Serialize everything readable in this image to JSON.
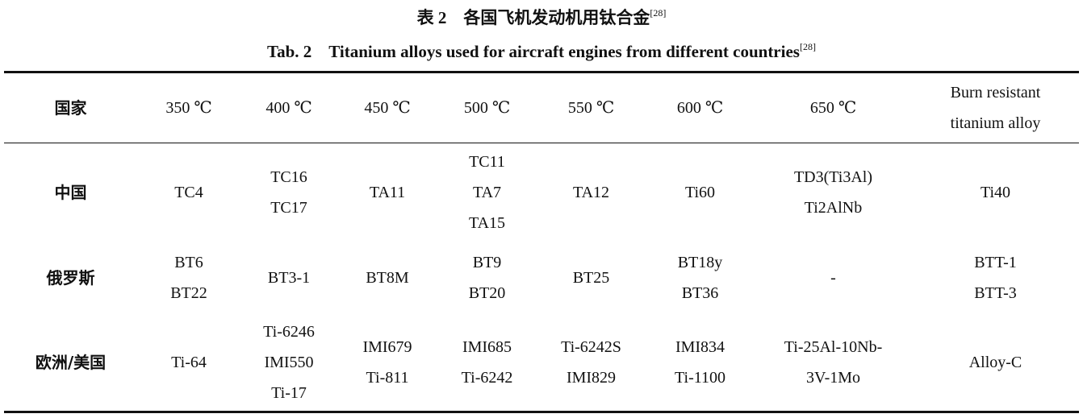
{
  "title_zh": {
    "text": "表 2　各国飞机发动机用钛合金",
    "ref": "[28]"
  },
  "title_en": {
    "text": "Tab. 2　Titanium alloys used for aircraft engines from different countries",
    "ref": "[28]"
  },
  "table": {
    "header": [
      "国家",
      "350 ℃",
      "400 ℃",
      "450 ℃",
      "500 ℃",
      "550 ℃",
      "600 ℃",
      "650 ℃",
      "Burn resistant titanium alloy"
    ],
    "rows": [
      {
        "country": "中国",
        "cells": [
          [
            "TC4"
          ],
          [
            "TC16",
            "TC17"
          ],
          [
            "TA11"
          ],
          [
            "TC11",
            "TA7",
            "TA15"
          ],
          [
            "TA12"
          ],
          [
            "Ti60"
          ],
          [
            "TD3(Ti3Al)",
            "Ti2AlNb"
          ],
          [
            "Ti40"
          ]
        ]
      },
      {
        "country": "俄罗斯",
        "cells": [
          [
            "BT6",
            "BT22"
          ],
          [
            "BT3-1"
          ],
          [
            "BT8M"
          ],
          [
            "BT9",
            "BT20"
          ],
          [
            "BT25"
          ],
          [
            "BT18y",
            "BT36"
          ],
          [
            "-"
          ],
          [
            "BTT-1",
            "BTT-3"
          ]
        ]
      },
      {
        "country": "欧洲/美国",
        "cells": [
          [
            "Ti-64"
          ],
          [
            "Ti-6246",
            "IMI550",
            "Ti-17"
          ],
          [
            "IMI679",
            "Ti-811"
          ],
          [
            "IMI685",
            "Ti-6242"
          ],
          [
            "Ti-6242S",
            "IMI829"
          ],
          [
            "IMI834",
            "Ti-1100"
          ],
          [
            "Ti-25Al-10Nb-",
            "3V-1Mo"
          ],
          [
            "Alloy-C"
          ]
        ]
      }
    ]
  }
}
